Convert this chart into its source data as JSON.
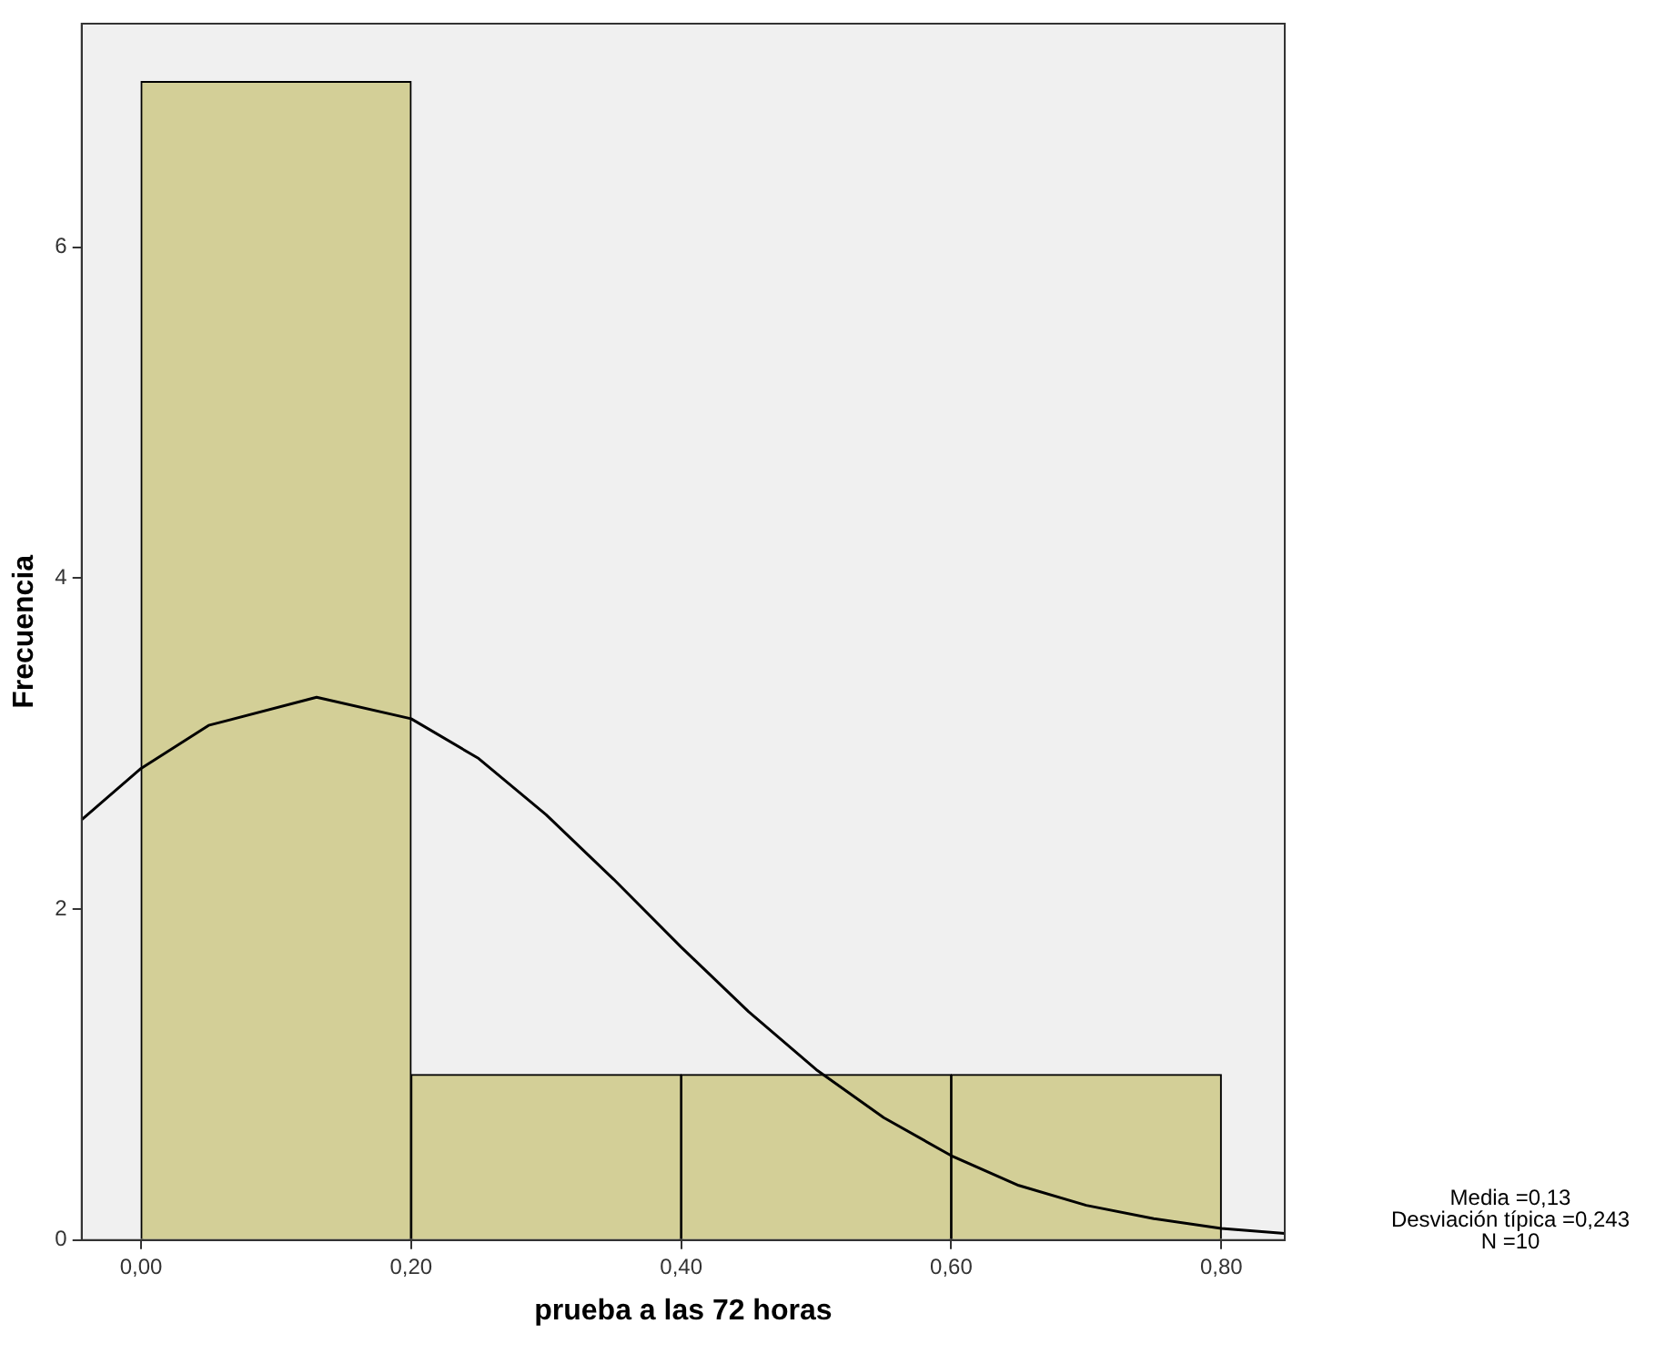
{
  "chart_data": {
    "type": "histogram",
    "xlabel": "prueba a las 72 horas",
    "ylabel": "Frecuencia",
    "bins": [
      0,
      0.2,
      0.4,
      0.6,
      0.8
    ],
    "values": [
      7,
      1,
      1,
      1
    ],
    "color": "#d3cf97",
    "series": [
      {
        "type": "line",
        "color": "#000000",
        "x": [
          -0.044,
          0,
          0.05,
          0.13,
          0.2,
          0.25,
          0.3,
          0.35,
          0.4,
          0.45,
          0.5,
          0.55,
          0.6,
          0.65,
          0.7,
          0.75,
          0.8,
          0.847
        ],
        "values": [
          2.54,
          2.85,
          3.11,
          3.28,
          3.15,
          2.91,
          2.57,
          2.18,
          1.77,
          1.38,
          1.03,
          0.74,
          0.51,
          0.33,
          0.21,
          0.13,
          0.07,
          0.04
        ]
      }
    ],
    "xlim": [
      -0.044,
      0.847
    ],
    "xticks": [
      {
        "value": 0,
        "label": "0,00"
      },
      {
        "value": 0.2,
        "label": "0,20"
      },
      {
        "value": 0.4,
        "label": "0,40"
      },
      {
        "value": 0.6,
        "label": "0,60"
      },
      {
        "value": 0.8,
        "label": "0,80"
      }
    ],
    "ylim": [
      0,
      7.35
    ],
    "yticks": [
      0,
      2,
      4,
      6
    ],
    "grid": false,
    "legend": false,
    "marker": "none",
    "line_style": "solid",
    "annotations": [
      "Media =0,13",
      "Desviación típica =0,243",
      "N =10"
    ]
  }
}
